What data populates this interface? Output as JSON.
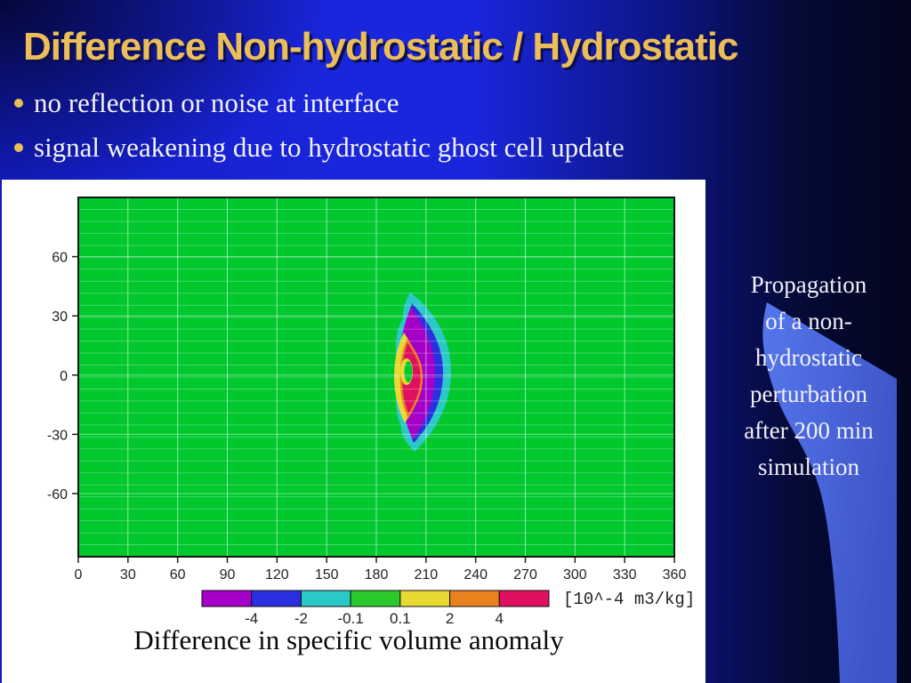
{
  "title": "Difference Non-hydrostatic / Hydrostatic",
  "bullets": [
    "no reflection or noise at interface",
    "signal weakening due to hydrostatic ghost cell update"
  ],
  "side_note": {
    "lines": [
      "Propagation",
      "of a non-",
      "hydrostatic",
      "perturbation",
      "after 200 min",
      "simulation"
    ]
  },
  "caption": "Difference in specific volume anomaly",
  "colors": {
    "title_gold": "#ECBE58",
    "bullet_dot": "#E8B450",
    "slide_blue": "#1A26DC",
    "dark_navy": "#04082F",
    "swoosh_blue_light": "#5577EC",
    "swoosh_blue_dark": "#3E55C8",
    "panel_white": "#FFFFFF"
  },
  "chart_data": {
    "type": "heatmap",
    "title": "",
    "xlabel": "",
    "ylabel": "",
    "xlim": [
      0,
      360
    ],
    "ylim": [
      -92,
      90
    ],
    "x_ticks": [
      0,
      30,
      60,
      90,
      120,
      150,
      180,
      210,
      240,
      270,
      300,
      330,
      360
    ],
    "y_ticks": [
      60,
      30,
      0,
      -30,
      -60
    ],
    "grid": {
      "vertical_every": 30,
      "horizontal_intervals": 30,
      "grid_on": true
    },
    "palette": {
      "green_bg": "#00C82D",
      "cyan": "#2BC8C8",
      "blue": "#2A2FE0",
      "purple": "#A400C8",
      "yellow": "#E8D832",
      "orange": "#E8821E",
      "crimson": "#E01060",
      "cb_green": "#2BC82B"
    },
    "feature": {
      "description": "crescent-shaped wave perturbation, tips up/down, bulging right",
      "center_x": 205,
      "center_y": 0,
      "bands": [
        {
          "value_range": "-2 to -0.1",
          "color_name": "cyan",
          "extent_x": [
            190,
            225
          ],
          "extent_y": [
            -42,
            44
          ]
        },
        {
          "value_range": "-4 to -2",
          "color_name": "blue",
          "extent_x": [
            194,
            220
          ],
          "extent_y": [
            -37,
            39
          ]
        },
        {
          "value_range": "below -4",
          "color_name": "purple",
          "extent_x": [
            192,
            215
          ],
          "extent_y": [
            -35,
            37
          ]
        },
        {
          "value_range": "0.1 to 2",
          "color_name": "yellow",
          "extent_x": [
            190,
            204
          ],
          "extent_y": [
            -25,
            23
          ]
        },
        {
          "value_range": "2 to 4",
          "color_name": "orange",
          "extent_x": [
            194,
            207
          ],
          "extent_y": [
            -21,
            19
          ],
          "note": "thin rim"
        },
        {
          "value_range": "above 4",
          "color_name": "crimson",
          "extent_x": [
            194,
            207
          ],
          "extent_y": [
            -20,
            18
          ]
        },
        {
          "value_range": "-0.1 to 0.1",
          "color_name": "green_bg",
          "extent_x": [
            198,
            202
          ],
          "extent_y": [
            -4,
            4
          ],
          "note": "small core spot"
        }
      ]
    },
    "colorbar": {
      "colors": [
        "#A400C8",
        "#2A2FE0",
        "#2BC8C8",
        "#2BC82B",
        "#E8D832",
        "#E8821E",
        "#E01060"
      ],
      "boundary_labels": [
        "-4",
        "-2",
        "-0.1",
        "0.1",
        "2",
        "4"
      ],
      "units": "[10^-4 m3/kg]"
    }
  }
}
